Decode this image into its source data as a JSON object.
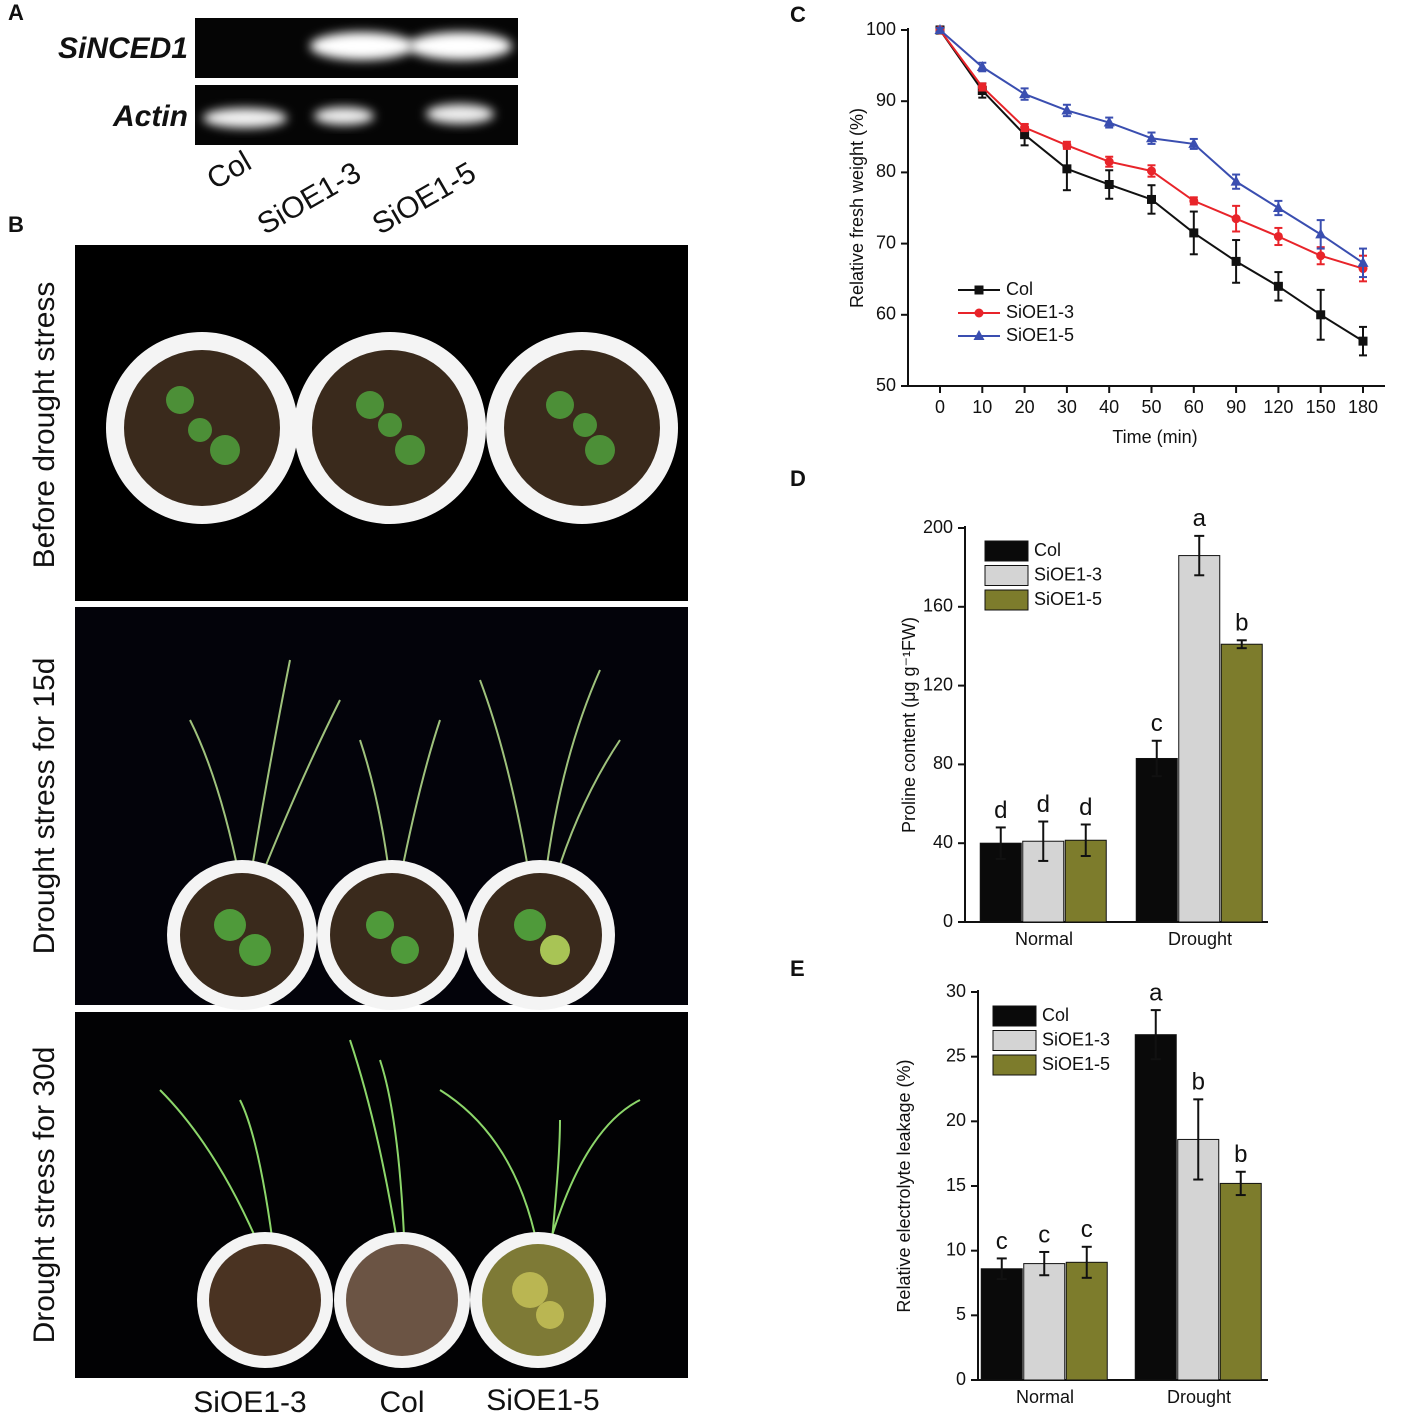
{
  "figure": {
    "panel_labels": [
      "A",
      "B",
      "C",
      "D",
      "E"
    ],
    "gel": {
      "genes": [
        "SiNCED1",
        "Actin"
      ],
      "lanes": [
        "Col",
        "SiOE1-3",
        "SiOE1-5"
      ]
    },
    "photos": {
      "stages": [
        "Before drought stress",
        "Drought stress for 15d",
        "Drought stress for 30d"
      ],
      "lines": [
        "SiOE1-3",
        "Col",
        "SiOE1-5"
      ]
    }
  },
  "chart_data": [
    {
      "type": "line",
      "categories": [
        "0",
        "10",
        "20",
        "30",
        "40",
        "50",
        "60",
        "90",
        "120",
        "150",
        "180"
      ],
      "x_label": "Time (min)",
      "y_label": "Relative fresh weight (%)",
      "ylim": [
        50,
        100
      ],
      "yticks": [
        50,
        60,
        70,
        80,
        90,
        100
      ],
      "legend": "lower left",
      "series": [
        {
          "name": "Col",
          "color": "#111111",
          "marker": "square",
          "values": [
            100,
            91.5,
            85.3,
            80.5,
            78.3,
            76.2,
            71.5,
            67.5,
            64,
            60,
            56.3
          ],
          "errors": [
            0.5,
            1,
            1.5,
            3,
            2,
            2,
            3,
            3,
            2,
            3.5,
            2
          ]
        },
        {
          "name": "SiOE1-3",
          "color": "#e8242a",
          "marker": "circle",
          "values": [
            100,
            92,
            86.3,
            83.8,
            81.5,
            80.2,
            76,
            73.5,
            71,
            68.3,
            66.5
          ],
          "errors": [
            0.3,
            0.5,
            0.5,
            0.5,
            0.7,
            0.8,
            0.5,
            1.8,
            1.2,
            1.2,
            1.8
          ]
        },
        {
          "name": "SiOE1-5",
          "color": "#3a4eb0",
          "marker": "triangle",
          "values": [
            100,
            94.8,
            91,
            88.7,
            87,
            84.8,
            84,
            78.7,
            75,
            71.3,
            67.3
          ],
          "errors": [
            0.3,
            0.6,
            0.8,
            0.8,
            0.7,
            0.8,
            0.7,
            1,
            1,
            2,
            2
          ]
        }
      ]
    },
    {
      "type": "bar",
      "categories": [
        "Normal",
        "Drought"
      ],
      "y_label": "Proline content (μg g⁻¹FW)",
      "ylim": [
        0,
        200
      ],
      "yticks": [
        0,
        40,
        80,
        120,
        160,
        200
      ],
      "legend": "upper left",
      "series": [
        {
          "name": "Col",
          "color": "#0a0a0a",
          "values": [
            40,
            83
          ],
          "errors": [
            8,
            9
          ],
          "letters": [
            "d",
            "c"
          ]
        },
        {
          "name": "SiOE1-3",
          "color": "#d4d4d4",
          "values": [
            41,
            186
          ],
          "errors": [
            10,
            10
          ],
          "letters": [
            "d",
            "a"
          ]
        },
        {
          "name": "SiOE1-5",
          "color": "#7d7c2c",
          "values": [
            41.5,
            141
          ],
          "errors": [
            8,
            2
          ],
          "letters": [
            "d",
            "b"
          ]
        }
      ]
    },
    {
      "type": "bar",
      "categories": [
        "Normal",
        "Drought"
      ],
      "y_label": "Relative electrolyte leakage (%)",
      "ylim": [
        0,
        30
      ],
      "yticks": [
        0,
        5,
        10,
        15,
        20,
        25,
        30
      ],
      "legend": "upper left",
      "series": [
        {
          "name": "Col",
          "color": "#0a0a0a",
          "values": [
            8.6,
            26.7
          ],
          "errors": [
            0.8,
            1.9
          ],
          "letters": [
            "c",
            "a"
          ]
        },
        {
          "name": "SiOE1-3",
          "color": "#d4d4d4",
          "values": [
            9.0,
            18.6
          ],
          "errors": [
            0.9,
            3.1
          ],
          "letters": [
            "c",
            "b"
          ]
        },
        {
          "name": "SiOE1-5",
          "color": "#7d7c2c",
          "values": [
            9.1,
            15.2
          ],
          "errors": [
            1.2,
            0.9
          ],
          "letters": [
            "c",
            "b"
          ]
        }
      ]
    }
  ]
}
